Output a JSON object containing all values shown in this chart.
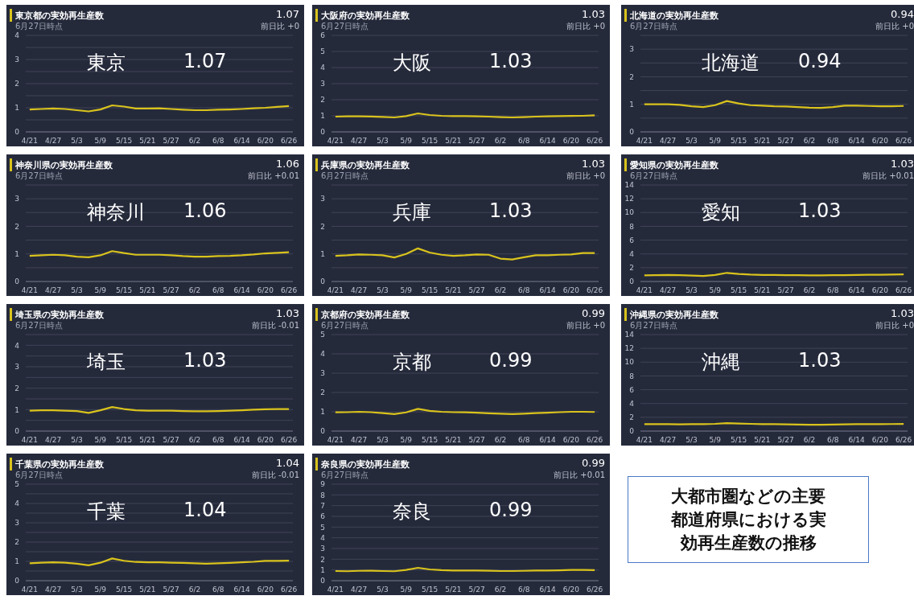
{
  "chart_data": [
    {
      "type": "line",
      "title": "東京都の実効再生産数",
      "subtitle": "6月27日時点",
      "annotations": [
        "1.07",
        "前日比 +0",
        "東京",
        "1.07"
      ],
      "color": "#d9c31c",
      "grid": "y",
      "xlim": [
        "--04-20",
        "--06-27"
      ],
      "xticks": [
        {
          "value": "--04-21",
          "label": "4/21"
        },
        {
          "value": "--04-27",
          "label": "4/27"
        },
        {
          "value": "--05-03",
          "label": "5/3"
        },
        {
          "value": "--05-09",
          "label": "5/9"
        },
        {
          "value": "--05-15",
          "label": "5/15"
        },
        {
          "value": "--05-21",
          "label": "5/21"
        },
        {
          "value": "--05-27",
          "label": "5/27"
        },
        {
          "value": "--06-02",
          "label": "6/2"
        },
        {
          "value": "--06-08",
          "label": "6/8"
        },
        {
          "value": "--06-14",
          "label": "6/14"
        },
        {
          "value": "--06-20",
          "label": "6/20"
        },
        {
          "value": "--06-26",
          "label": "6/26"
        }
      ],
      "ylim": [
        0,
        4
      ],
      "yticks": [
        0,
        {
          "value": 0.5,
          "label": null
        },
        1,
        {
          "value": 1.5,
          "label": null
        },
        2,
        {
          "value": 2.5,
          "label": null
        },
        3,
        {
          "value": 3.5,
          "label": null
        },
        4
      ],
      "x": [
        "--04-21",
        "--04-24",
        "--04-27",
        "--04-30",
        "--05-03",
        "--05-06",
        "--05-09",
        "--05-12",
        "--05-15",
        "--05-18",
        "--05-21",
        "--05-24",
        "--05-27",
        "--05-30",
        "--06-02",
        "--06-05",
        "--06-08",
        "--06-11",
        "--06-14",
        "--06-17",
        "--06-20",
        "--06-23",
        "--06-26"
      ],
      "values": [
        0.93,
        0.95,
        0.97,
        0.95,
        0.9,
        0.85,
        0.93,
        1.1,
        1.05,
        0.97,
        0.97,
        0.98,
        0.95,
        0.92,
        0.9,
        0.9,
        0.92,
        0.93,
        0.95,
        0.98,
        1.0,
        1.04,
        1.07
      ]
    },
    {
      "type": "line",
      "title": "大阪府の実効再生産数",
      "subtitle": "6月27日時点",
      "annotations": [
        "1.03",
        "前日比 +0",
        "大阪",
        "1.03"
      ],
      "color": "#d9c31c",
      "grid": "y",
      "xlim": [
        "--04-20",
        "--06-27"
      ],
      "xticks": [
        {
          "value": "--04-21",
          "label": "4/21"
        },
        {
          "value": "--04-27",
          "label": "4/27"
        },
        {
          "value": "--05-03",
          "label": "5/3"
        },
        {
          "value": "--05-09",
          "label": "5/9"
        },
        {
          "value": "--05-15",
          "label": "5/15"
        },
        {
          "value": "--05-21",
          "label": "5/21"
        },
        {
          "value": "--05-27",
          "label": "5/27"
        },
        {
          "value": "--06-02",
          "label": "6/2"
        },
        {
          "value": "--06-08",
          "label": "6/8"
        },
        {
          "value": "--06-14",
          "label": "6/14"
        },
        {
          "value": "--06-20",
          "label": "6/20"
        },
        {
          "value": "--06-26",
          "label": "6/26"
        }
      ],
      "ylim": [
        0,
        6
      ],
      "yticks": [
        0,
        1,
        2,
        3,
        4,
        5,
        6
      ],
      "x": [
        "--04-21",
        "--04-24",
        "--04-27",
        "--04-30",
        "--05-03",
        "--05-06",
        "--05-09",
        "--05-12",
        "--05-15",
        "--05-18",
        "--05-21",
        "--05-24",
        "--05-27",
        "--05-30",
        "--06-02",
        "--06-05",
        "--06-08",
        "--06-11",
        "--06-14",
        "--06-17",
        "--06-20",
        "--06-23",
        "--06-26"
      ],
      "values": [
        0.95,
        0.97,
        0.97,
        0.96,
        0.93,
        0.9,
        0.98,
        1.15,
        1.05,
        1.0,
        0.98,
        0.98,
        0.97,
        0.95,
        0.92,
        0.9,
        0.92,
        0.95,
        0.97,
        0.98,
        0.99,
        1.0,
        1.03
      ]
    },
    {
      "type": "line",
      "title": "北海道の実効再生産数",
      "subtitle": "6月27日時点",
      "annotations": [
        "0.94",
        "前日比 +0",
        "北海道",
        "0.94"
      ],
      "color": "#d9c31c",
      "grid": "y",
      "xlim": [
        "--04-20",
        "--06-27"
      ],
      "xticks": [
        {
          "value": "--04-21",
          "label": "4/21"
        },
        {
          "value": "--04-27",
          "label": "4/27"
        },
        {
          "value": "--05-03",
          "label": "5/3"
        },
        {
          "value": "--05-09",
          "label": "5/9"
        },
        {
          "value": "--05-15",
          "label": "5/15"
        },
        {
          "value": "--05-21",
          "label": "5/21"
        },
        {
          "value": "--05-27",
          "label": "5/27"
        },
        {
          "value": "--06-02",
          "label": "6/2"
        },
        {
          "value": "--06-08",
          "label": "6/8"
        },
        {
          "value": "--06-14",
          "label": "6/14"
        },
        {
          "value": "--06-20",
          "label": "6/20"
        },
        {
          "value": "--06-26",
          "label": "6/26"
        }
      ],
      "ylim": [
        0,
        3.5
      ],
      "yticks": [
        0,
        {
          "value": 0.5,
          "label": null
        },
        1,
        {
          "value": 1.5,
          "label": null
        },
        2,
        {
          "value": 2.5,
          "label": null
        },
        3,
        {
          "value": 3.5,
          "label": null
        }
      ],
      "x": [
        "--04-21",
        "--04-24",
        "--04-27",
        "--04-30",
        "--05-03",
        "--05-06",
        "--05-09",
        "--05-12",
        "--05-15",
        "--05-18",
        "--05-21",
        "--05-24",
        "--05-27",
        "--05-30",
        "--06-02",
        "--06-05",
        "--06-08",
        "--06-11",
        "--06-14",
        "--06-17",
        "--06-20",
        "--06-23",
        "--06-26"
      ],
      "values": [
        1.0,
        1.0,
        1.0,
        0.98,
        0.93,
        0.9,
        0.97,
        1.12,
        1.03,
        0.97,
        0.95,
        0.93,
        0.92,
        0.9,
        0.88,
        0.87,
        0.9,
        0.95,
        0.95,
        0.94,
        0.93,
        0.93,
        0.94
      ]
    },
    {
      "type": "line",
      "title": "神奈川県の実効再生産数",
      "subtitle": "6月27日時点",
      "annotations": [
        "1.06",
        "前日比 +0.01",
        "神奈川",
        "1.06"
      ],
      "color": "#d9c31c",
      "grid": "y",
      "xlim": [
        "--04-20",
        "--06-27"
      ],
      "xticks": [
        {
          "value": "--04-21",
          "label": "4/21"
        },
        {
          "value": "--04-27",
          "label": "4/27"
        },
        {
          "value": "--05-03",
          "label": "5/3"
        },
        {
          "value": "--05-09",
          "label": "5/9"
        },
        {
          "value": "--05-15",
          "label": "5/15"
        },
        {
          "value": "--05-21",
          "label": "5/21"
        },
        {
          "value": "--05-27",
          "label": "5/27"
        },
        {
          "value": "--06-02",
          "label": "6/2"
        },
        {
          "value": "--06-08",
          "label": "6/8"
        },
        {
          "value": "--06-14",
          "label": "6/14"
        },
        {
          "value": "--06-20",
          "label": "6/20"
        },
        {
          "value": "--06-26",
          "label": "6/26"
        }
      ],
      "ylim": [
        0,
        3.5
      ],
      "yticks": [
        0,
        {
          "value": 0.5,
          "label": null
        },
        1,
        {
          "value": 1.5,
          "label": null
        },
        2,
        {
          "value": 2.5,
          "label": null
        },
        3,
        {
          "value": 3.5,
          "label": null
        }
      ],
      "x": [
        "--04-21",
        "--04-24",
        "--04-27",
        "--04-30",
        "--05-03",
        "--05-06",
        "--05-09",
        "--05-12",
        "--05-15",
        "--05-18",
        "--05-21",
        "--05-24",
        "--05-27",
        "--05-30",
        "--06-02",
        "--06-05",
        "--06-08",
        "--06-11",
        "--06-14",
        "--06-17",
        "--06-20",
        "--06-23",
        "--06-26"
      ],
      "values": [
        0.93,
        0.95,
        0.97,
        0.95,
        0.9,
        0.88,
        0.95,
        1.1,
        1.03,
        0.97,
        0.97,
        0.97,
        0.95,
        0.92,
        0.9,
        0.9,
        0.92,
        0.93,
        0.95,
        0.98,
        1.02,
        1.04,
        1.06
      ]
    },
    {
      "type": "line",
      "title": "兵庫県の実効再生産数",
      "subtitle": "6月27日時点",
      "annotations": [
        "1.03",
        "前日比 +0",
        "兵庫",
        "1.03"
      ],
      "color": "#d9c31c",
      "grid": "y",
      "xlim": [
        "--04-20",
        "--06-27"
      ],
      "xticks": [
        {
          "value": "--04-21",
          "label": "4/21"
        },
        {
          "value": "--04-27",
          "label": "4/27"
        },
        {
          "value": "--05-03",
          "label": "5/3"
        },
        {
          "value": "--05-09",
          "label": "5/9"
        },
        {
          "value": "--05-15",
          "label": "5/15"
        },
        {
          "value": "--05-21",
          "label": "5/21"
        },
        {
          "value": "--05-27",
          "label": "5/27"
        },
        {
          "value": "--06-02",
          "label": "6/2"
        },
        {
          "value": "--06-08",
          "label": "6/8"
        },
        {
          "value": "--06-14",
          "label": "6/14"
        },
        {
          "value": "--06-20",
          "label": "6/20"
        },
        {
          "value": "--06-26",
          "label": "6/26"
        }
      ],
      "ylim": [
        0,
        3.5
      ],
      "yticks": [
        0,
        {
          "value": 0.5,
          "label": null
        },
        1,
        {
          "value": 1.5,
          "label": null
        },
        2,
        {
          "value": 2.5,
          "label": null
        },
        3,
        {
          "value": 3.5,
          "label": null
        }
      ],
      "x": [
        "--04-21",
        "--04-24",
        "--04-27",
        "--04-30",
        "--05-03",
        "--05-06",
        "--05-09",
        "--05-12",
        "--05-15",
        "--05-18",
        "--05-21",
        "--05-24",
        "--05-27",
        "--05-30",
        "--06-02",
        "--06-05",
        "--06-08",
        "--06-11",
        "--06-14",
        "--06-17",
        "--06-20",
        "--06-23",
        "--06-26"
      ],
      "values": [
        0.93,
        0.95,
        0.98,
        0.97,
        0.95,
        0.87,
        1.0,
        1.2,
        1.05,
        0.97,
        0.93,
        0.95,
        0.98,
        0.97,
        0.83,
        0.8,
        0.88,
        0.95,
        0.95,
        0.97,
        0.98,
        1.03,
        1.03
      ]
    },
    {
      "type": "line",
      "title": "愛知県の実効再生産数",
      "subtitle": "6月27日時点",
      "annotations": [
        "1.03",
        "前日比 +0.01",
        "愛知",
        "1.03"
      ],
      "color": "#d9c31c",
      "grid": "y",
      "xlim": [
        "--04-20",
        "--06-27"
      ],
      "xticks": [
        {
          "value": "--04-21",
          "label": "4/21"
        },
        {
          "value": "--04-27",
          "label": "4/27"
        },
        {
          "value": "--05-03",
          "label": "5/3"
        },
        {
          "value": "--05-09",
          "label": "5/9"
        },
        {
          "value": "--05-15",
          "label": "5/15"
        },
        {
          "value": "--05-21",
          "label": "5/21"
        },
        {
          "value": "--05-27",
          "label": "5/27"
        },
        {
          "value": "--06-02",
          "label": "6/2"
        },
        {
          "value": "--06-08",
          "label": "6/8"
        },
        {
          "value": "--06-14",
          "label": "6/14"
        },
        {
          "value": "--06-20",
          "label": "6/20"
        },
        {
          "value": "--06-26",
          "label": "6/26"
        }
      ],
      "ylim": [
        0,
        14
      ],
      "yticks": [
        0,
        2,
        4,
        6,
        8,
        10,
        12,
        14
      ],
      "x": [
        "--04-21",
        "--04-24",
        "--04-27",
        "--04-30",
        "--05-03",
        "--05-06",
        "--05-09",
        "--05-12",
        "--05-15",
        "--05-18",
        "--05-21",
        "--05-24",
        "--05-27",
        "--05-30",
        "--06-02",
        "--06-05",
        "--06-08",
        "--06-11",
        "--06-14",
        "--06-17",
        "--06-20",
        "--06-23",
        "--06-26"
      ],
      "values": [
        0.9,
        0.92,
        0.95,
        0.93,
        0.85,
        0.8,
        0.95,
        1.25,
        1.1,
        1.0,
        0.95,
        0.95,
        0.93,
        0.92,
        0.9,
        0.9,
        0.92,
        0.93,
        0.95,
        0.97,
        0.98,
        1.0,
        1.03
      ]
    },
    {
      "type": "line",
      "title": "埼玉県の実効再生産数",
      "subtitle": "6月27日時点",
      "annotations": [
        "1.03",
        "前日比 -0.01",
        "埼玉",
        "1.03"
      ],
      "color": "#d9c31c",
      "grid": "y",
      "xlim": [
        "--04-20",
        "--06-27"
      ],
      "xticks": [
        {
          "value": "--04-21",
          "label": "4/21"
        },
        {
          "value": "--04-27",
          "label": "4/27"
        },
        {
          "value": "--05-03",
          "label": "5/3"
        },
        {
          "value": "--05-09",
          "label": "5/9"
        },
        {
          "value": "--05-15",
          "label": "5/15"
        },
        {
          "value": "--05-21",
          "label": "5/21"
        },
        {
          "value": "--05-27",
          "label": "5/27"
        },
        {
          "value": "--06-02",
          "label": "6/2"
        },
        {
          "value": "--06-08",
          "label": "6/8"
        },
        {
          "value": "--06-14",
          "label": "6/14"
        },
        {
          "value": "--06-20",
          "label": "6/20"
        },
        {
          "value": "--06-26",
          "label": "6/26"
        }
      ],
      "ylim": [
        0,
        4.5
      ],
      "yticks": [
        0,
        {
          "value": 0.5,
          "label": null
        },
        1,
        {
          "value": 1.5,
          "label": null
        },
        2,
        {
          "value": 2.5,
          "label": null
        },
        3,
        {
          "value": 3.5,
          "label": null
        },
        4,
        {
          "value": 4.5,
          "label": null
        }
      ],
      "x": [
        "--04-21",
        "--04-24",
        "--04-27",
        "--04-30",
        "--05-03",
        "--05-06",
        "--05-09",
        "--05-12",
        "--05-15",
        "--05-18",
        "--05-21",
        "--05-24",
        "--05-27",
        "--05-30",
        "--06-02",
        "--06-05",
        "--06-08",
        "--06-11",
        "--06-14",
        "--06-17",
        "--06-20",
        "--06-23",
        "--06-26"
      ],
      "values": [
        0.95,
        0.97,
        0.97,
        0.95,
        0.93,
        0.85,
        0.97,
        1.12,
        1.03,
        0.97,
        0.95,
        0.95,
        0.95,
        0.93,
        0.92,
        0.92,
        0.93,
        0.95,
        0.97,
        1.0,
        1.02,
        1.03,
        1.03
      ]
    },
    {
      "type": "line",
      "title": "京都府の実効再生産数",
      "subtitle": "6月27日時点",
      "annotations": [
        "0.99",
        "前日比 +0",
        "京都",
        "0.99"
      ],
      "color": "#d9c31c",
      "grid": "y",
      "xlim": [
        "--04-20",
        "--06-27"
      ],
      "xticks": [
        {
          "value": "--04-21",
          "label": "4/21"
        },
        {
          "value": "--04-27",
          "label": "4/27"
        },
        {
          "value": "--05-03",
          "label": "5/3"
        },
        {
          "value": "--05-09",
          "label": "5/9"
        },
        {
          "value": "--05-15",
          "label": "5/15"
        },
        {
          "value": "--05-21",
          "label": "5/21"
        },
        {
          "value": "--05-27",
          "label": "5/27"
        },
        {
          "value": "--06-02",
          "label": "6/2"
        },
        {
          "value": "--06-08",
          "label": "6/8"
        },
        {
          "value": "--06-14",
          "label": "6/14"
        },
        {
          "value": "--06-20",
          "label": "6/20"
        },
        {
          "value": "--06-26",
          "label": "6/26"
        }
      ],
      "ylim": [
        0,
        5
      ],
      "yticks": [
        0,
        1,
        2,
        3,
        4,
        5
      ],
      "x": [
        "--04-21",
        "--04-24",
        "--04-27",
        "--04-30",
        "--05-03",
        "--05-06",
        "--05-09",
        "--05-12",
        "--05-15",
        "--05-18",
        "--05-21",
        "--05-24",
        "--05-27",
        "--05-30",
        "--06-02",
        "--06-05",
        "--06-08",
        "--06-11",
        "--06-14",
        "--06-17",
        "--06-20",
        "--06-23",
        "--06-26"
      ],
      "values": [
        0.97,
        0.98,
        1.0,
        0.98,
        0.93,
        0.88,
        0.97,
        1.15,
        1.05,
        1.0,
        0.98,
        0.97,
        0.95,
        0.92,
        0.9,
        0.88,
        0.9,
        0.93,
        0.95,
        0.98,
        1.0,
        1.0,
        0.99
      ]
    },
    {
      "type": "line",
      "title": "沖縄県の実効再生産数",
      "subtitle": "6月27日時点",
      "annotations": [
        "1.03",
        "前日比 +0",
        "沖縄",
        "1.03"
      ],
      "color": "#d9c31c",
      "grid": "y",
      "xlim": [
        "--04-20",
        "--06-27"
      ],
      "xticks": [
        {
          "value": "--04-21",
          "label": "4/21"
        },
        {
          "value": "--04-27",
          "label": "4/27"
        },
        {
          "value": "--05-03",
          "label": "5/3"
        },
        {
          "value": "--05-09",
          "label": "5/9"
        },
        {
          "value": "--05-15",
          "label": "5/15"
        },
        {
          "value": "--05-21",
          "label": "5/21"
        },
        {
          "value": "--05-27",
          "label": "5/27"
        },
        {
          "value": "--06-02",
          "label": "6/2"
        },
        {
          "value": "--06-08",
          "label": "6/8"
        },
        {
          "value": "--06-14",
          "label": "6/14"
        },
        {
          "value": "--06-20",
          "label": "6/20"
        },
        {
          "value": "--06-26",
          "label": "6/26"
        }
      ],
      "ylim": [
        0,
        14
      ],
      "yticks": [
        0,
        2,
        4,
        6,
        8,
        10,
        12,
        14
      ],
      "x": [
        "--04-21",
        "--04-24",
        "--04-27",
        "--04-30",
        "--05-03",
        "--05-06",
        "--05-09",
        "--05-12",
        "--05-15",
        "--05-18",
        "--05-21",
        "--05-24",
        "--05-27",
        "--05-30",
        "--06-02",
        "--06-05",
        "--06-08",
        "--06-11",
        "--06-14",
        "--06-17",
        "--06-20",
        "--06-23",
        "--06-26"
      ],
      "values": [
        1.0,
        1.0,
        1.0,
        0.98,
        1.0,
        1.0,
        1.05,
        1.15,
        1.1,
        1.05,
        1.0,
        1.0,
        0.98,
        0.95,
        0.92,
        0.92,
        0.95,
        0.98,
        1.0,
        1.0,
        1.0,
        1.02,
        1.03
      ]
    },
    {
      "type": "line",
      "title": "千葉県の実効再生産数",
      "subtitle": "6月27日時点",
      "annotations": [
        "1.04",
        "前日比 -0.01",
        "千葉",
        "1.04"
      ],
      "color": "#d9c31c",
      "grid": "y",
      "xlim": [
        "--04-20",
        "--06-27"
      ],
      "xticks": [
        {
          "value": "--04-21",
          "label": "4/21"
        },
        {
          "value": "--04-27",
          "label": "4/27"
        },
        {
          "value": "--05-03",
          "label": "5/3"
        },
        {
          "value": "--05-09",
          "label": "5/9"
        },
        {
          "value": "--05-15",
          "label": "5/15"
        },
        {
          "value": "--05-21",
          "label": "5/21"
        },
        {
          "value": "--05-27",
          "label": "5/27"
        },
        {
          "value": "--06-02",
          "label": "6/2"
        },
        {
          "value": "--06-08",
          "label": "6/8"
        },
        {
          "value": "--06-14",
          "label": "6/14"
        },
        {
          "value": "--06-20",
          "label": "6/20"
        },
        {
          "value": "--06-26",
          "label": "6/26"
        }
      ],
      "ylim": [
        0,
        5
      ],
      "yticks": [
        0,
        {
          "value": 0.5,
          "label": null
        },
        1,
        {
          "value": 1.5,
          "label": null
        },
        2,
        {
          "value": 2.5,
          "label": null
        },
        3,
        {
          "value": 3.5,
          "label": null
        },
        4,
        {
          "value": 4.5,
          "label": null
        },
        5
      ],
      "x": [
        "--04-21",
        "--04-24",
        "--04-27",
        "--04-30",
        "--05-03",
        "--05-06",
        "--05-09",
        "--05-12",
        "--05-15",
        "--05-18",
        "--05-21",
        "--05-24",
        "--05-27",
        "--05-30",
        "--06-02",
        "--06-05",
        "--06-08",
        "--06-11",
        "--06-14",
        "--06-17",
        "--06-20",
        "--06-23",
        "--06-26"
      ],
      "values": [
        0.9,
        0.93,
        0.95,
        0.93,
        0.88,
        0.8,
        0.93,
        1.15,
        1.03,
        0.97,
        0.95,
        0.95,
        0.93,
        0.92,
        0.9,
        0.88,
        0.9,
        0.92,
        0.95,
        0.98,
        1.03,
        1.03,
        1.04
      ]
    },
    {
      "type": "line",
      "title": "奈良県の実効再生産数",
      "subtitle": "6月27日時点",
      "annotations": [
        "0.99",
        "前日比 +0.01",
        "奈良",
        "0.99"
      ],
      "color": "#d9c31c",
      "grid": "y",
      "xlim": [
        "--04-20",
        "--06-27"
      ],
      "xticks": [
        {
          "value": "--04-21",
          "label": "4/21"
        },
        {
          "value": "--04-27",
          "label": "4/27"
        },
        {
          "value": "--05-03",
          "label": "5/3"
        },
        {
          "value": "--05-09",
          "label": "5/9"
        },
        {
          "value": "--05-15",
          "label": "5/15"
        },
        {
          "value": "--05-21",
          "label": "5/21"
        },
        {
          "value": "--05-27",
          "label": "5/27"
        },
        {
          "value": "--06-02",
          "label": "6/2"
        },
        {
          "value": "--06-08",
          "label": "6/8"
        },
        {
          "value": "--06-14",
          "label": "6/14"
        },
        {
          "value": "--06-20",
          "label": "6/20"
        },
        {
          "value": "--06-26",
          "label": "6/26"
        }
      ],
      "ylim": [
        0,
        9
      ],
      "yticks": [
        0,
        1,
        2,
        3,
        4,
        5,
        6,
        7,
        8,
        9
      ],
      "x": [
        "--04-21",
        "--04-24",
        "--04-27",
        "--04-30",
        "--05-03",
        "--05-06",
        "--05-09",
        "--05-12",
        "--05-15",
        "--05-18",
        "--05-21",
        "--05-24",
        "--05-27",
        "--05-30",
        "--06-02",
        "--06-05",
        "--06-08",
        "--06-11",
        "--06-14",
        "--06-17",
        "--06-20",
        "--06-23",
        "--06-26"
      ],
      "values": [
        0.9,
        0.88,
        0.92,
        0.93,
        0.9,
        0.88,
        1.0,
        1.2,
        1.05,
        0.98,
        0.95,
        0.95,
        0.95,
        0.93,
        0.9,
        0.9,
        0.92,
        0.95,
        0.95,
        0.97,
        1.0,
        1.0,
        0.99
      ]
    },
    {
      "type": "other",
      "title": "大都市圏などの主要都道府県における実効再生産数の推移"
    }
  ]
}
